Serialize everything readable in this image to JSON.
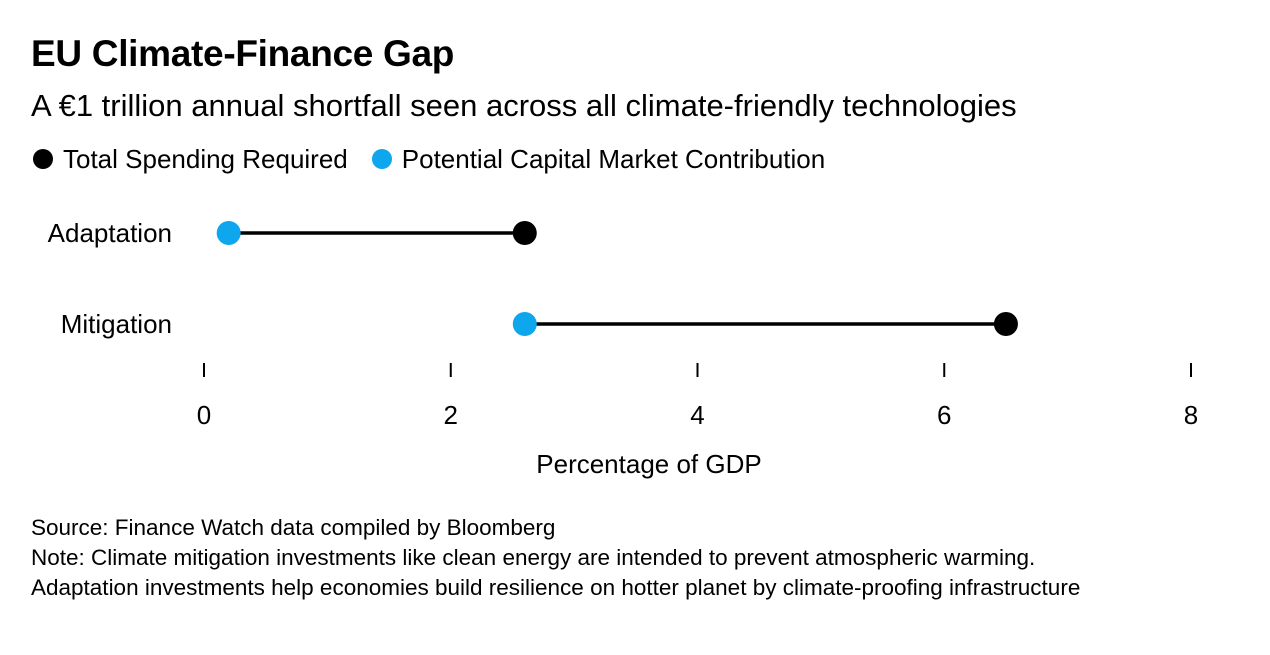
{
  "header": {
    "title": "EU Climate-Finance Gap",
    "subtitle": "A €1 trillion annual shortfall seen across all climate-friendly technologies"
  },
  "legend": {
    "items": [
      {
        "label": "Total Spending Required",
        "color": "#000000"
      },
      {
        "label": "Potential Capital Market Contribution",
        "color": "#0ea6ec"
      }
    ]
  },
  "chart_data": {
    "type": "dumbbell",
    "categories": [
      "Adaptation",
      "Mitigation"
    ],
    "series": [
      {
        "name": "Total Spending Required",
        "values": [
          2.6,
          6.5
        ],
        "color": "#000000"
      },
      {
        "name": "Potential Capital Market Contribution",
        "values": [
          0.2,
          2.6
        ],
        "color": "#0ea6ec"
      }
    ],
    "xlabel": "Percentage of GDP",
    "ylabel": "",
    "xlim": [
      0,
      8
    ],
    "xticks": [
      0,
      2,
      4,
      6,
      8
    ],
    "xtick_labels": [
      "0",
      "2",
      "4",
      "6",
      "8"
    ],
    "grid": false,
    "legend_position": "top-left"
  },
  "footer": {
    "source": "Source: Finance Watch data compiled by Bloomberg",
    "note_line1": "Note: Climate mitigation investments like clean energy are intended to prevent atmospheric warming.",
    "note_line2": "Adaptation investments help economies build resilience on hotter planet by climate-proofing infrastructure"
  }
}
